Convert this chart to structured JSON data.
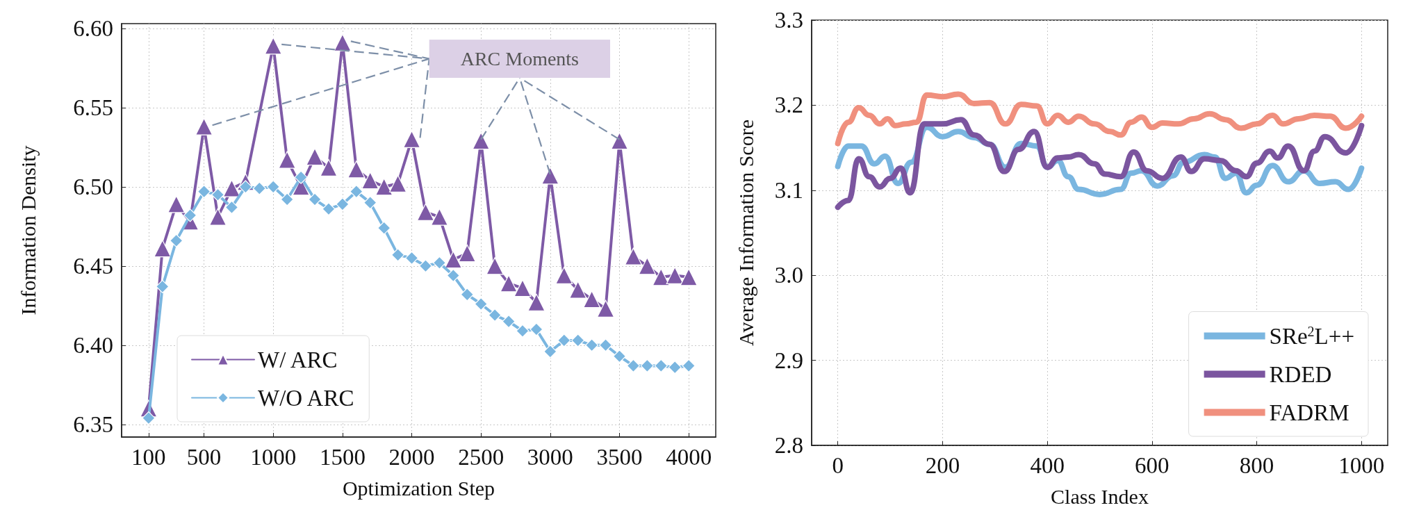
{
  "chart_data": [
    {
      "type": "line",
      "xlabel": "Optimization Step",
      "ylabel": "Information Density",
      "x": [
        100,
        200,
        300,
        400,
        500,
        600,
        700,
        800,
        900,
        1000,
        1100,
        1200,
        1300,
        1400,
        1500,
        1600,
        1700,
        1800,
        1900,
        2000,
        2100,
        2200,
        2300,
        2400,
        2500,
        2600,
        2700,
        2800,
        2900,
        3000,
        3100,
        3200,
        3300,
        3400,
        3500,
        3600,
        3700,
        3800,
        3900,
        4000
      ],
      "series": [
        {
          "name": "W/ ARC",
          "color": "#7e5aa6",
          "marker": "triangle",
          "values": [
            6.36,
            6.461,
            6.489,
            6.478,
            6.538,
            6.481,
            6.499,
            6.503,
            null,
            6.589,
            6.517,
            6.5,
            6.519,
            6.512,
            6.591,
            6.511,
            6.504,
            6.5,
            6.502,
            6.53,
            6.484,
            6.481,
            6.454,
            6.458,
            6.529,
            6.45,
            6.439,
            6.436,
            6.427,
            6.507,
            6.444,
            6.435,
            6.429,
            6.423,
            6.529,
            6.456,
            6.45,
            6.443,
            6.444,
            6.443
          ]
        },
        {
          "name": "W/O ARC",
          "color": "#7ab6e0",
          "marker": "diamond",
          "values": [
            6.354,
            6.437,
            6.466,
            6.482,
            6.497,
            6.495,
            6.487,
            6.5,
            6.499,
            6.5,
            6.492,
            6.506,
            6.492,
            6.486,
            6.489,
            6.497,
            6.49,
            6.474,
            6.457,
            6.455,
            6.45,
            6.452,
            6.444,
            6.432,
            6.426,
            6.419,
            6.415,
            6.409,
            6.41,
            6.396,
            6.403,
            6.403,
            6.4,
            6.4,
            6.393,
            6.387,
            6.387,
            6.387,
            6.386,
            6.387
          ]
        }
      ],
      "annotations": [
        {
          "text": "ARC Moments",
          "x": 3000,
          "y": 6.507
        }
      ],
      "xlim": [
        -95,
        4195
      ],
      "xticks": [
        100,
        500,
        1000,
        1500,
        2000,
        2500,
        3000,
        3500,
        4000
      ],
      "ylim": [
        6.342,
        6.603
      ],
      "yticks": [
        6.35,
        {
          "value": 6.4,
          "label": "6.40"
        },
        6.45,
        {
          "value": 6.5,
          "label": "6.50"
        },
        6.55,
        {
          "value": 6.6,
          "label": "6.60"
        }
      ],
      "grid": true,
      "legend": "bottom left"
    },
    {
      "type": "line",
      "xlabel": "Class Index",
      "ylabel": "Average Information Score",
      "series": [
        {
          "name": "SRe$^{2}$L++",
          "color": "#7ab6e0",
          "x": [
            0,
            20,
            45,
            70,
            90,
            115,
            140,
            170,
            200,
            230,
            260,
            290,
            320,
            350,
            380,
            400,
            420,
            440,
            460,
            500,
            540,
            560,
            580,
            610,
            640,
            660,
            700,
            720,
            740,
            760,
            780,
            800,
            830,
            860,
            890,
            920,
            950,
            975,
            1000
          ],
          "values": [
            3.128,
            3.152,
            3.152,
            3.131,
            3.14,
            3.108,
            3.133,
            3.174,
            3.163,
            3.169,
            3.162,
            3.154,
            3.127,
            3.155,
            3.152,
            3.127,
            3.135,
            3.116,
            3.101,
            3.095,
            3.101,
            3.12,
            3.123,
            3.105,
            3.117,
            3.133,
            3.142,
            3.139,
            3.114,
            3.12,
            3.097,
            3.106,
            3.129,
            3.11,
            3.123,
            3.108,
            3.11,
            3.101,
            3.126
          ]
        },
        {
          "name": "RDED",
          "color": "#7b559f",
          "x": [
            0,
            20,
            40,
            60,
            80,
            100,
            120,
            138,
            165,
            200,
            235,
            260,
            290,
            318,
            345,
            375,
            400,
            420,
            440,
            460,
            490,
            510,
            540,
            565,
            590,
            620,
            655,
            675,
            700,
            730,
            760,
            780,
            800,
            825,
            840,
            860,
            890,
            910,
            930,
            970,
            1000
          ],
          "values": [
            3.08,
            3.088,
            3.137,
            3.116,
            3.104,
            3.114,
            3.126,
            3.097,
            3.178,
            3.178,
            3.183,
            3.165,
            3.154,
            3.122,
            3.148,
            3.169,
            3.127,
            3.138,
            3.139,
            3.142,
            3.131,
            3.119,
            3.116,
            3.145,
            3.123,
            3.114,
            3.139,
            3.122,
            3.137,
            3.135,
            3.123,
            3.116,
            3.132,
            3.146,
            3.138,
            3.152,
            3.123,
            3.146,
            3.163,
            3.144,
            3.176
          ]
        },
        {
          "name": "FADRM",
          "color": "#f0907e",
          "x": [
            0,
            20,
            40,
            60,
            80,
            95,
            110,
            130,
            150,
            170,
            200,
            230,
            260,
            290,
            320,
            350,
            380,
            400,
            420,
            440,
            460,
            490,
            520,
            540,
            560,
            580,
            600,
            620,
            650,
            680,
            710,
            740,
            770,
            800,
            830,
            850,
            880,
            910,
            940,
            970,
            1000
          ],
          "values": [
            3.155,
            3.18,
            3.197,
            3.188,
            3.178,
            3.184,
            3.176,
            3.178,
            3.18,
            3.212,
            3.21,
            3.213,
            3.202,
            3.203,
            3.178,
            3.201,
            3.199,
            3.178,
            3.188,
            3.18,
            3.187,
            3.178,
            3.169,
            3.165,
            3.18,
            3.186,
            3.174,
            3.179,
            3.178,
            3.184,
            3.19,
            3.183,
            3.173,
            3.178,
            3.188,
            3.178,
            3.184,
            3.188,
            3.187,
            3.173,
            3.187
          ]
        }
      ],
      "xlim": [
        -50,
        1050
      ],
      "xticks": [
        0,
        200,
        400,
        600,
        800,
        1000
      ],
      "ylim": [
        2.8,
        3.3
      ],
      "yticks": [
        2.8,
        2.9,
        {
          "value": 3,
          "label": "3.0"
        },
        3.1,
        3.2,
        3.3
      ],
      "grid": true,
      "legend": "bottom right"
    }
  ]
}
